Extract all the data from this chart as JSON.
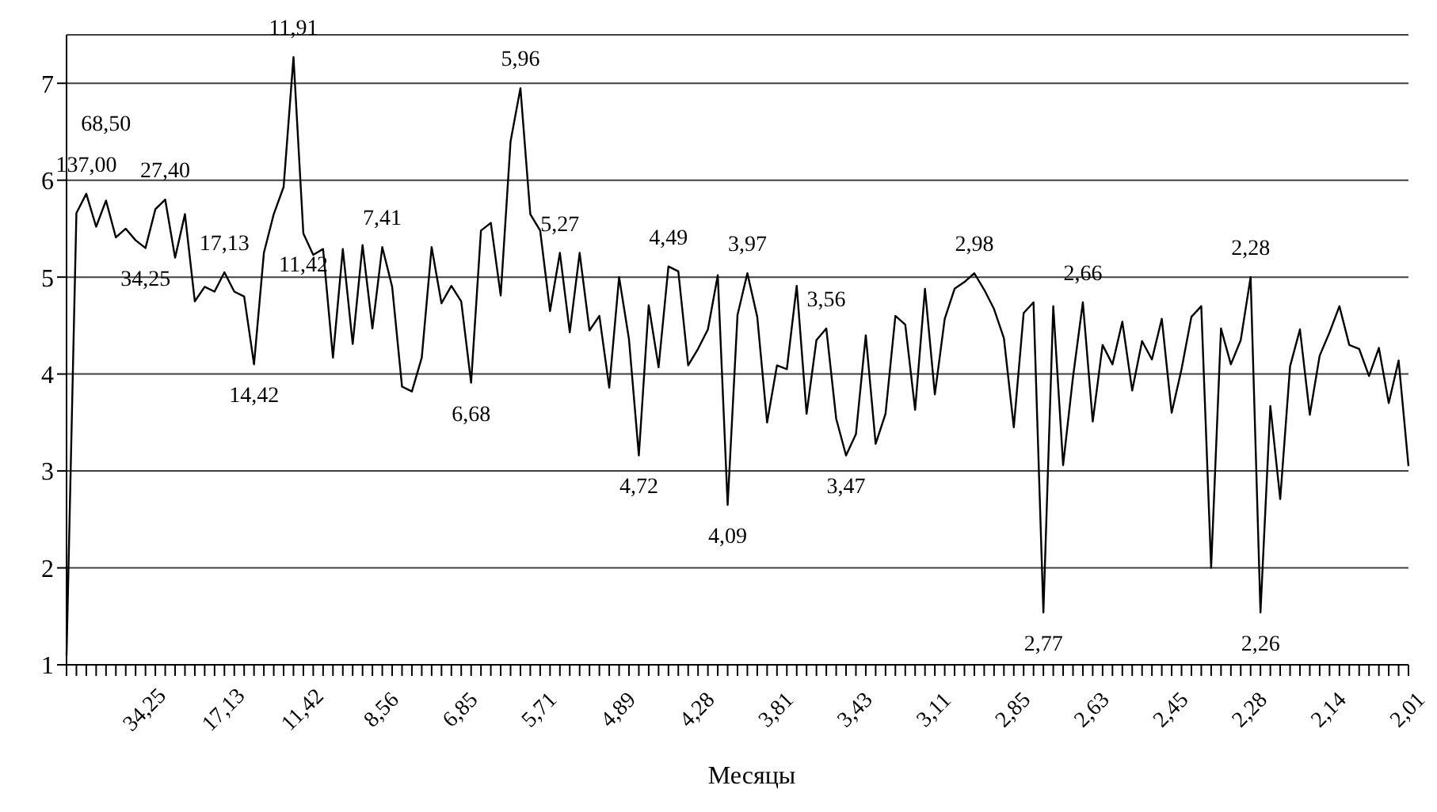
{
  "chart_data": {
    "type": "line",
    "xlabel": "Месяцы",
    "categories": [
      null,
      null,
      null,
      null,
      null,
      null,
      null,
      null,
      "34,25",
      null,
      null,
      null,
      null,
      null,
      null,
      null,
      "17,13",
      null,
      null,
      null,
      null,
      null,
      null,
      null,
      "11,42",
      null,
      null,
      null,
      null,
      null,
      null,
      null,
      "8,56",
      null,
      null,
      null,
      null,
      null,
      null,
      null,
      "6,85",
      null,
      null,
      null,
      null,
      null,
      null,
      null,
      "5,71",
      null,
      null,
      null,
      null,
      null,
      null,
      null,
      "4,89",
      null,
      null,
      null,
      null,
      null,
      null,
      null,
      "4,28",
      null,
      null,
      null,
      null,
      null,
      null,
      null,
      "3,81",
      null,
      null,
      null,
      null,
      null,
      null,
      null,
      "3,43",
      null,
      null,
      null,
      null,
      null,
      null,
      null,
      "3,11",
      null,
      null,
      null,
      null,
      null,
      null,
      null,
      "2,85",
      null,
      null,
      null,
      null,
      null,
      null,
      null,
      "2,63",
      null,
      null,
      null,
      null,
      null,
      null,
      null,
      "2,45",
      null,
      null,
      null,
      null,
      null,
      null,
      null,
      "2,28",
      null,
      null,
      null,
      null,
      null,
      null,
      null,
      "2,14",
      null,
      null,
      null,
      null,
      null,
      null,
      null,
      "2,01"
    ],
    "series": [
      {
        "color": "#000000",
        "values": [
          1.1,
          5.66,
          5.86,
          5.52,
          5.79,
          5.41,
          5.5,
          5.38,
          5.3,
          5.7,
          5.8,
          5.2,
          5.65,
          4.75,
          4.9,
          4.85,
          5.05,
          4.85,
          4.8,
          4.1,
          5.25,
          5.65,
          5.93,
          7.27,
          5.45,
          5.23,
          5.29,
          4.17,
          5.29,
          4.31,
          5.33,
          4.47,
          5.31,
          4.9,
          3.87,
          3.82,
          4.17,
          5.31,
          4.73,
          4.91,
          4.75,
          3.91,
          5.48,
          5.56,
          4.81,
          6.4,
          6.95,
          5.65,
          5.48,
          4.65,
          5.25,
          4.43,
          5.25,
          4.45,
          4.6,
          3.86,
          5.0,
          4.36,
          3.16,
          4.71,
          4.07,
          5.11,
          5.06,
          4.09,
          4.26,
          4.46,
          5.02,
          2.65,
          4.61,
          5.04,
          4.59,
          3.5,
          4.09,
          4.05,
          4.91,
          3.59,
          4.35,
          4.47,
          3.54,
          3.16,
          3.38,
          4.4,
          3.28,
          3.59,
          4.6,
          4.51,
          3.63,
          4.88,
          3.79,
          4.57,
          4.88,
          4.95,
          5.04,
          4.87,
          4.67,
          4.37,
          3.45,
          4.63,
          4.74,
          1.54,
          4.7,
          3.06,
          3.97,
          4.74,
          3.51,
          4.3,
          4.1,
          4.54,
          3.83,
          4.34,
          4.15,
          4.57,
          3.6,
          4.05,
          4.59,
          4.7,
          2.0,
          4.47,
          4.1,
          4.35,
          5.0,
          1.54,
          3.67,
          2.71,
          4.08,
          4.46,
          3.58,
          4.19,
          4.43,
          4.7,
          4.3,
          4.26,
          3.98,
          4.27,
          3.7,
          4.14,
          3.05
        ]
      }
    ],
    "annotations": [
      {
        "text": "137,00",
        "y": 5.86
      },
      {
        "text": "68,50",
        "y": 5.79
      },
      {
        "text": "34,25",
        "y": 5.3
      },
      {
        "text": "27,40",
        "y": 5.8
      },
      {
        "text": "17,13",
        "y": 5.05
      },
      {
        "text": "14,42",
        "y": 4.1
      },
      {
        "text": "11,91",
        "y": 7.27
      },
      {
        "text": "11,42",
        "y": 5.45
      },
      {
        "text": "7,41",
        "y": 5.31
      },
      {
        "text": "6,68",
        "y": 3.91
      },
      {
        "text": "5,96",
        "y": 6.95
      },
      {
        "text": "5,27",
        "y": 5.25
      },
      {
        "text": "4,72",
        "y": 3.16
      },
      {
        "text": "4,49",
        "y": 5.11
      },
      {
        "text": "4,09",
        "y": 2.65
      },
      {
        "text": "3,97",
        "y": 5.04
      },
      {
        "text": "3,56",
        "y": 4.47
      },
      {
        "text": "3,47",
        "y": 3.16
      },
      {
        "text": "2,98",
        "y": 5.04
      },
      {
        "text": "2,77",
        "y": 1.54
      },
      {
        "text": "2,66",
        "y": 4.74
      },
      {
        "text": "2,28",
        "y": 5.0
      },
      {
        "text": "2,26",
        "y": 1.54
      }
    ],
    "ylim": [
      1,
      7.5
    ],
    "yticks": [
      1,
      2,
      3,
      4,
      5,
      6,
      7
    ],
    "grid": "y",
    "legend": false,
    "marker": "none",
    "line_style": "solid"
  }
}
